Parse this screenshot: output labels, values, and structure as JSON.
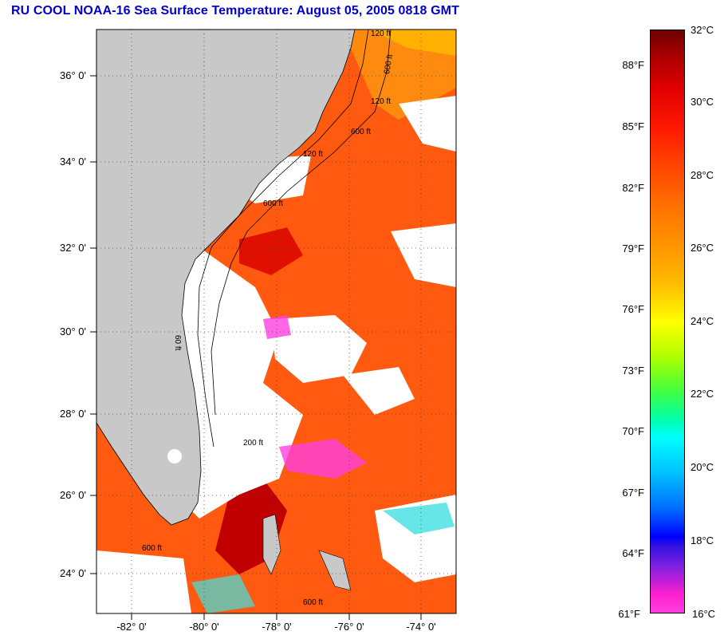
{
  "title": "RU COOL  NOAA-16  Sea Surface Temperature:  August 05, 2005 0818 GMT",
  "map": {
    "lat_labels": [
      "36° 0'",
      "34° 0'",
      "32° 0'",
      "30° 0'",
      "28° 0'",
      "26° 0'",
      "24° 0'"
    ],
    "lon_labels": [
      "-82° 0'",
      "-80° 0'",
      "-78° 0'",
      "-76° 0'",
      "-74° 0'"
    ],
    "land_color": "#c8c8c8",
    "cloud_color": "#ffffff",
    "ocean_colors": [
      "#ff5a10",
      "#ff3a00",
      "#e01000",
      "#c00000",
      "#ff8a00",
      "#40e0e0",
      "#ff40e0"
    ],
    "contour_labels": [
      "120 ft",
      "600 ft",
      "120 ft",
      "600 ft",
      "120 ft",
      "600 ft",
      "200 ft",
      "600 ft",
      "600 ft",
      "60 ft"
    ]
  },
  "colorbar": {
    "fahrenheit": [
      "88°F",
      "85°F",
      "82°F",
      "79°F",
      "76°F",
      "73°F",
      "70°F",
      "67°F",
      "64°F",
      "61°F"
    ],
    "celsius": [
      "32°C",
      "30°C",
      "28°C",
      "26°C",
      "24°C",
      "22°C",
      "20°C",
      "18°C",
      "16°C"
    ]
  }
}
